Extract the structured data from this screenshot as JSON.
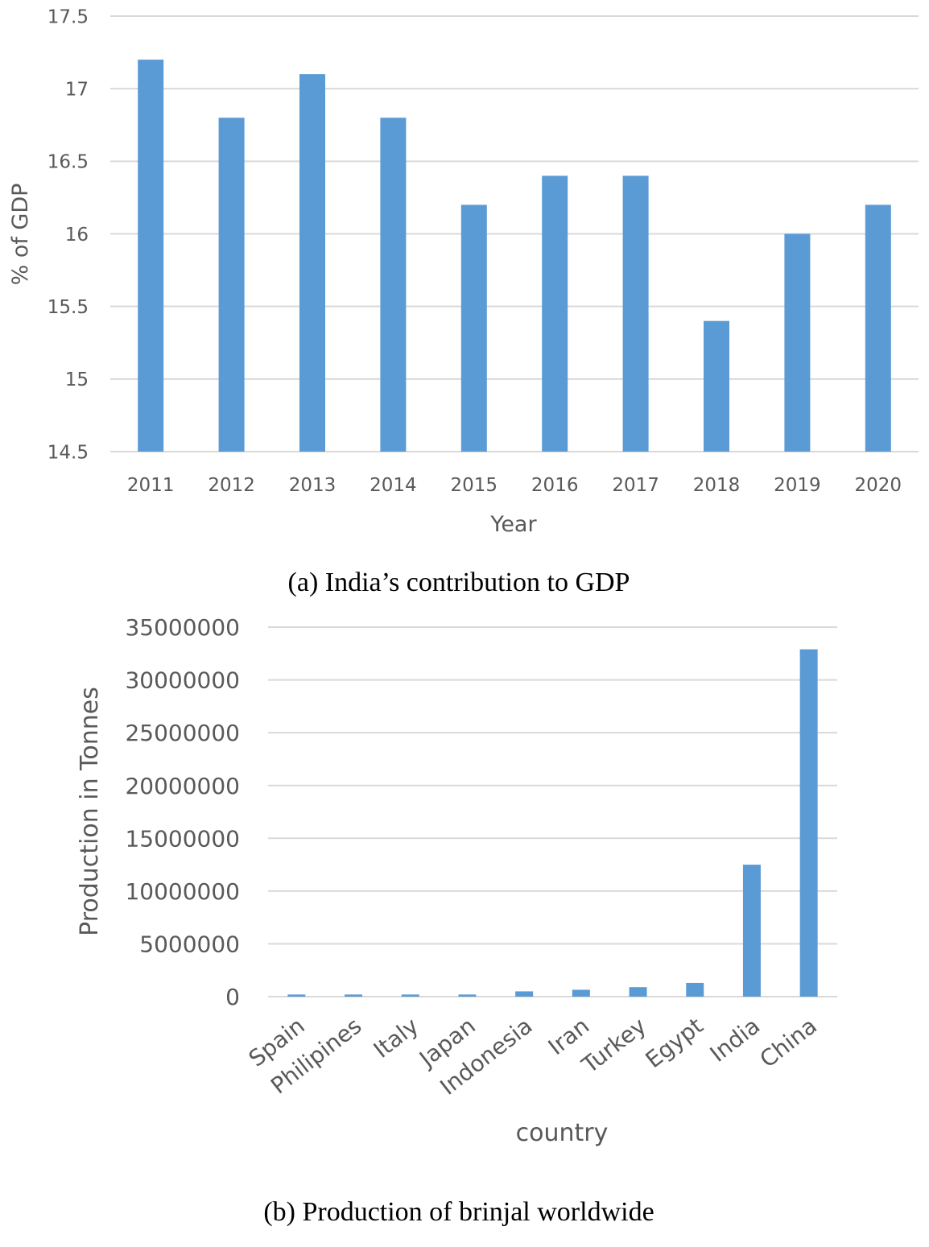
{
  "colors": {
    "bar": "#5b9bd5",
    "grid": "#d9d9d9",
    "text": "#595959"
  },
  "chart_data": [
    {
      "type": "bar",
      "title": "",
      "caption": "(a)  India’s contribution to GDP",
      "xlabel": "Year",
      "ylabel": "% of GDP",
      "ylim": [
        14.5,
        17.5
      ],
      "yticks": [
        14.5,
        15,
        15.5,
        16,
        16.5,
        17,
        17.5
      ],
      "ytick_labels": [
        "14.5",
        "15",
        "15.5",
        "16",
        "16.5",
        "17",
        "17.5"
      ],
      "grid": true,
      "categories": [
        "2011",
        "2012",
        "2013",
        "2014",
        "2015",
        "2016",
        "2017",
        "2018",
        "2019",
        "2020"
      ],
      "values": [
        17.2,
        16.8,
        17.1,
        16.8,
        16.2,
        16.4,
        16.4,
        15.4,
        16.0,
        16.2
      ]
    },
    {
      "type": "bar",
      "title": "",
      "caption": "(b)  Production of brinjal worldwide",
      "xlabel": "country",
      "ylabel": "Production in Tonnes",
      "ylim": [
        0,
        35000000
      ],
      "yticks": [
        0,
        5000000,
        10000000,
        15000000,
        20000000,
        25000000,
        30000000,
        35000000
      ],
      "ytick_labels": [
        "0",
        "5000000",
        "10000000",
        "15000000",
        "20000000",
        "25000000",
        "30000000",
        "35000000"
      ],
      "grid": true,
      "categories": [
        "Spain",
        "Philipines",
        "Italy",
        "Japan",
        "Indonesia",
        "Iran",
        "Turkey",
        "Egypt",
        "India",
        "China"
      ],
      "values": [
        200000,
        200000,
        200000,
        200000,
        500000,
        650000,
        900000,
        1300000,
        12500000,
        32900000
      ]
    }
  ]
}
